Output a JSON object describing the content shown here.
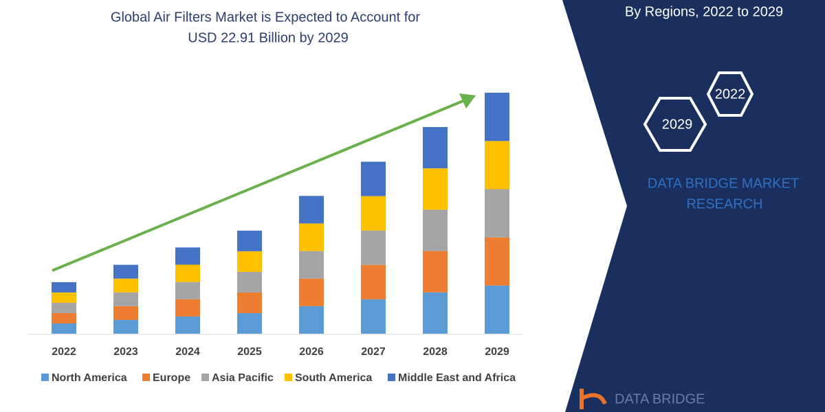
{
  "chart_data": {
    "type": "bar",
    "stacked": true,
    "title_lines": [
      "Global Air Filters Market is Expected to Account for",
      "USD 22.91 Billion by 2029"
    ],
    "categories": [
      "2022",
      "2023",
      "2024",
      "2025",
      "2026",
      "2027",
      "2028",
      "2029"
    ],
    "series": [
      {
        "name": "North America",
        "color": "#5b9bd5",
        "values": [
          0.98,
          1.31,
          1.64,
          1.96,
          2.62,
          3.27,
          3.93,
          4.58
        ]
      },
      {
        "name": "Europe",
        "color": "#ed7d31",
        "values": [
          0.98,
          1.31,
          1.64,
          1.96,
          2.62,
          3.27,
          3.93,
          4.58
        ]
      },
      {
        "name": "Asia Pacific",
        "color": "#a5a5a5",
        "values": [
          0.98,
          1.31,
          1.64,
          1.96,
          2.62,
          3.27,
          3.93,
          4.58
        ]
      },
      {
        "name": "South America",
        "color": "#ffc000",
        "values": [
          0.98,
          1.31,
          1.64,
          1.96,
          2.62,
          3.27,
          3.93,
          4.58
        ]
      },
      {
        "name": "Middle East and Africa",
        "color": "#4472c4",
        "values": [
          0.98,
          1.31,
          1.64,
          1.96,
          2.62,
          3.27,
          3.93,
          4.59
        ]
      }
    ]
  },
  "panel": {
    "subtitle": "By Regions, 2022 to 2029",
    "hexagons": [
      "2022",
      "2029"
    ],
    "brand_lines": [
      "DATA BRIDGE MARKET",
      "RESEARCH"
    ],
    "logo": "DATA BRIDGE"
  }
}
